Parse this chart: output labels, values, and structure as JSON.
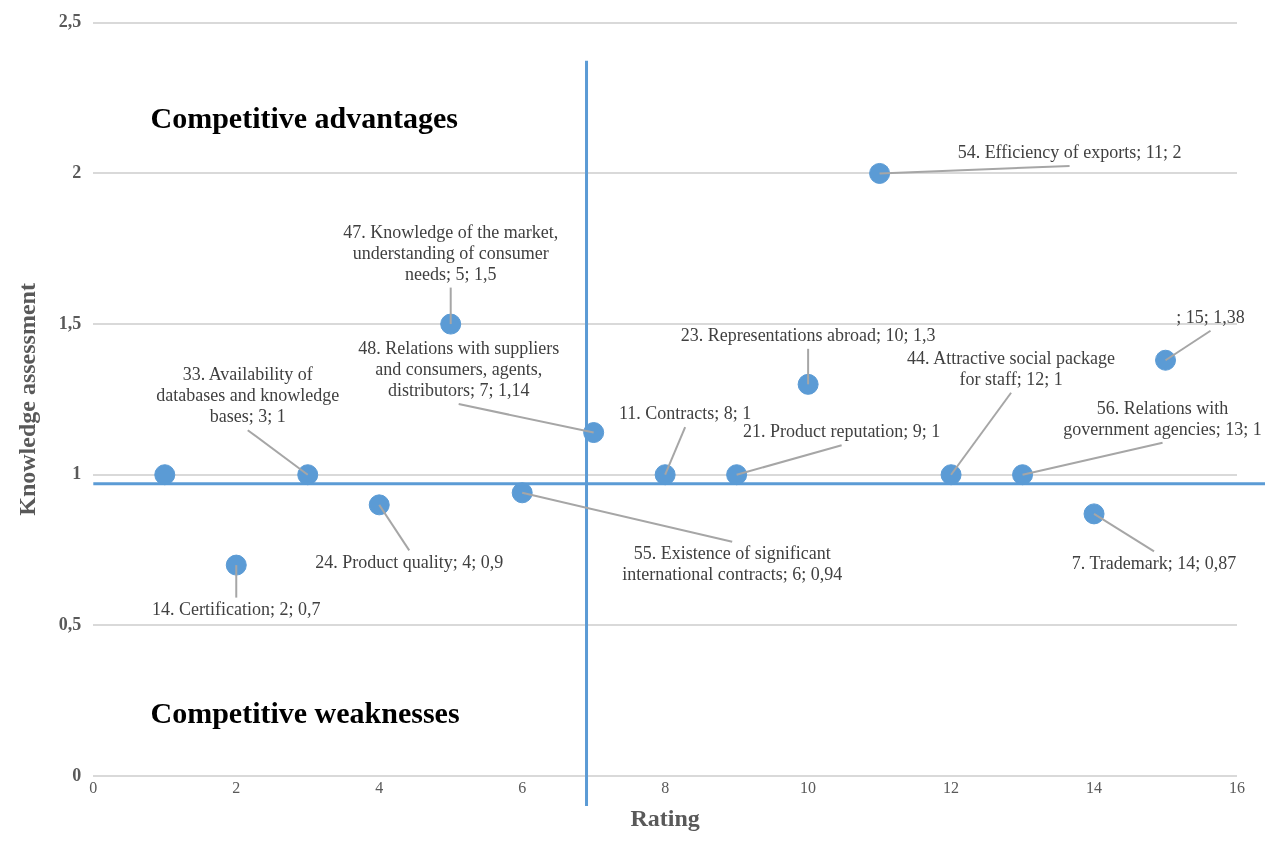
{
  "chart_data": {
    "type": "scatter",
    "xlabel": "Rating",
    "ylabel": "Knowledge assessment",
    "x": [
      1,
      2,
      3,
      4,
      5,
      6,
      7,
      8,
      9,
      10,
      11,
      12,
      13,
      14,
      15
    ],
    "series": [
      {
        "color": "#5b9bd5",
        "values": [
          1,
          0.7,
          1,
          0.9,
          1.5,
          0.94,
          1.14,
          1,
          1,
          1.3,
          2,
          1,
          1,
          0.87,
          1.38
        ]
      }
    ],
    "xlim": [
      0,
      16
    ],
    "xticks": [
      0,
      2,
      4,
      6,
      8,
      10,
      12,
      14,
      16
    ],
    "ylim": [
      0,
      2.5
    ],
    "yticks": [
      0,
      {
        "value": 0.5,
        "label": "0,5"
      },
      1,
      {
        "value": 1.5,
        "label": "1,5"
      },
      2,
      {
        "value": 2.5,
        "label": "2,5"
      }
    ],
    "grid": "y",
    "legend": false,
    "marker": "circle",
    "ref_lines": [
      {
        "axis": "x",
        "value": 6.9,
        "color": "#5b9bd5"
      },
      {
        "axis": "y",
        "value": 0.97,
        "color": "#5b9bd5"
      }
    ],
    "annotations": [
      "Competitive advantages",
      "Competitive weaknesses",
      {
        "text": "14. Certification; 2; 0,7",
        "x": 2,
        "y": 0.7
      },
      {
        "text": "33. Availability of databases and knowledge bases; 3; 1",
        "x": 3,
        "y": 1
      },
      {
        "text": "24. Product quality; 4; 0,9",
        "x": 4,
        "y": 0.9
      },
      {
        "text": "47. Knowledge of the market, understanding of consumer needs; 5; 1,5",
        "x": 5,
        "y": 1.5
      },
      {
        "text": "55. Existence of significant international contracts; 6; 0,94",
        "x": 6,
        "y": 0.94
      },
      {
        "text": "48. Relations with suppliers and consumers, agents, distributors; 7; 1,14",
        "x": 7,
        "y": 1.14
      },
      {
        "text": "11. Contracts; 8; 1",
        "x": 8,
        "y": 1
      },
      {
        "text": "21. Product reputation; 9; 1",
        "x": 9,
        "y": 1
      },
      {
        "text": "23. Representations abroad; 10; 1,3",
        "x": 10,
        "y": 1.3
      },
      {
        "text": "54. Efficiency of exports; 11; 2",
        "x": 11,
        "y": 2
      },
      {
        "text": "44. Attractive social package for staff; 12; 1",
        "x": 12,
        "y": 1
      },
      {
        "text": "56. Relations with government agencies; 13; 1",
        "x": 13,
        "y": 1
      },
      {
        "text": "7. Trademark; 14; 0,87",
        "x": 14,
        "y": 0.87
      },
      {
        "text": "; 15; 1,38",
        "x": 15,
        "y": 1.38
      }
    ]
  }
}
